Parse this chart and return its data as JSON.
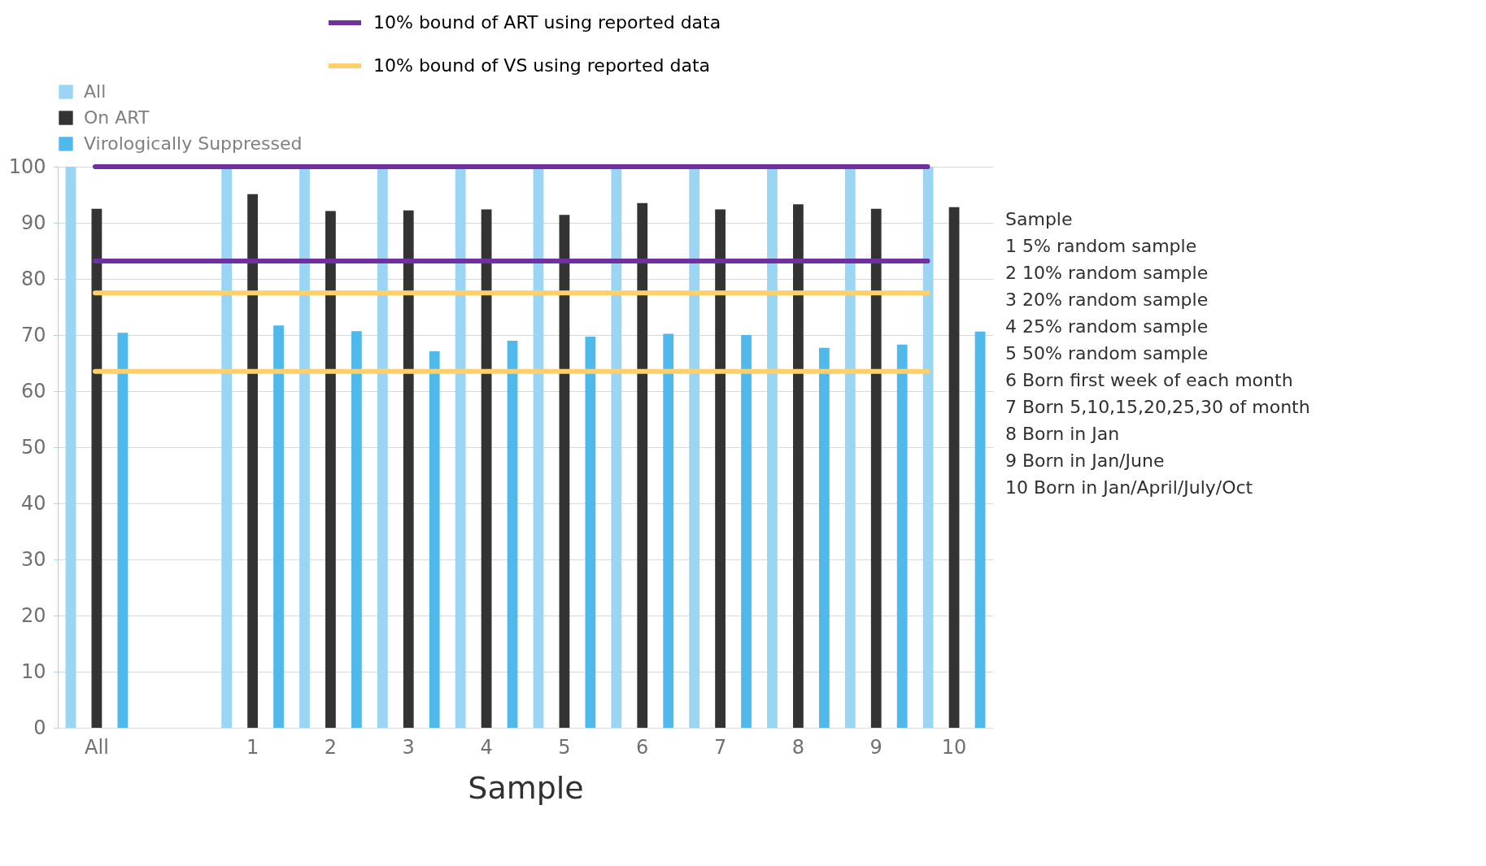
{
  "chart_data": {
    "type": "bar",
    "xlabel": "Sample",
    "categories": [
      "All",
      null,
      "1",
      "2",
      "3",
      "4",
      "5",
      "6",
      "7",
      "8",
      "9",
      "10"
    ],
    "series": [
      {
        "name": "All",
        "color": "#9ad6f4",
        "values": [
          100,
          null,
          100,
          100,
          100,
          100,
          100,
          100,
          100,
          100,
          100,
          100
        ]
      },
      {
        "name": "On ART",
        "color": "#333333",
        "values": [
          92.5,
          null,
          95.1,
          92.1,
          92.2,
          92.4,
          91.4,
          93.5,
          92.4,
          93.3,
          92.5,
          92.8
        ]
      },
      {
        "name": "Virologically Suppressed",
        "color": "#4fb9ec",
        "values": [
          70.4,
          null,
          71.7,
          70.7,
          67.1,
          69.0,
          69.7,
          70.2,
          70.0,
          67.7,
          68.3,
          70.6
        ]
      }
    ],
    "ylim": [
      0,
      100
    ],
    "yticks": [
      0,
      10,
      20,
      30,
      40,
      50,
      60,
      70,
      80,
      90,
      100
    ],
    "grid": "y",
    "legend": "top left",
    "ref_lines": [
      {
        "axis": "y",
        "value": 100,
        "label": "10% bound of ART using reported data",
        "color": "#7030a0"
      },
      {
        "axis": "y",
        "value": 83.2,
        "color": "#7030a0"
      },
      {
        "axis": "y",
        "value": 77.5,
        "label": "10% bound of VS using reported data",
        "color": "#fdd06b"
      },
      {
        "axis": "y",
        "value": 63.5,
        "color": "#fdd06b"
      }
    ],
    "annotations": [
      "Sample",
      "1    5% random sample",
      "2    10% random sample",
      "3    20% random sample",
      "4    25% random sample",
      "5    50% random sample",
      "6    Born first week of each month",
      "7    Born 5,10,15,20,25,30 of month",
      "8    Born in Jan",
      "9    Born in Jan/June",
      "10  Born in Jan/April/July/Oct"
    ]
  }
}
